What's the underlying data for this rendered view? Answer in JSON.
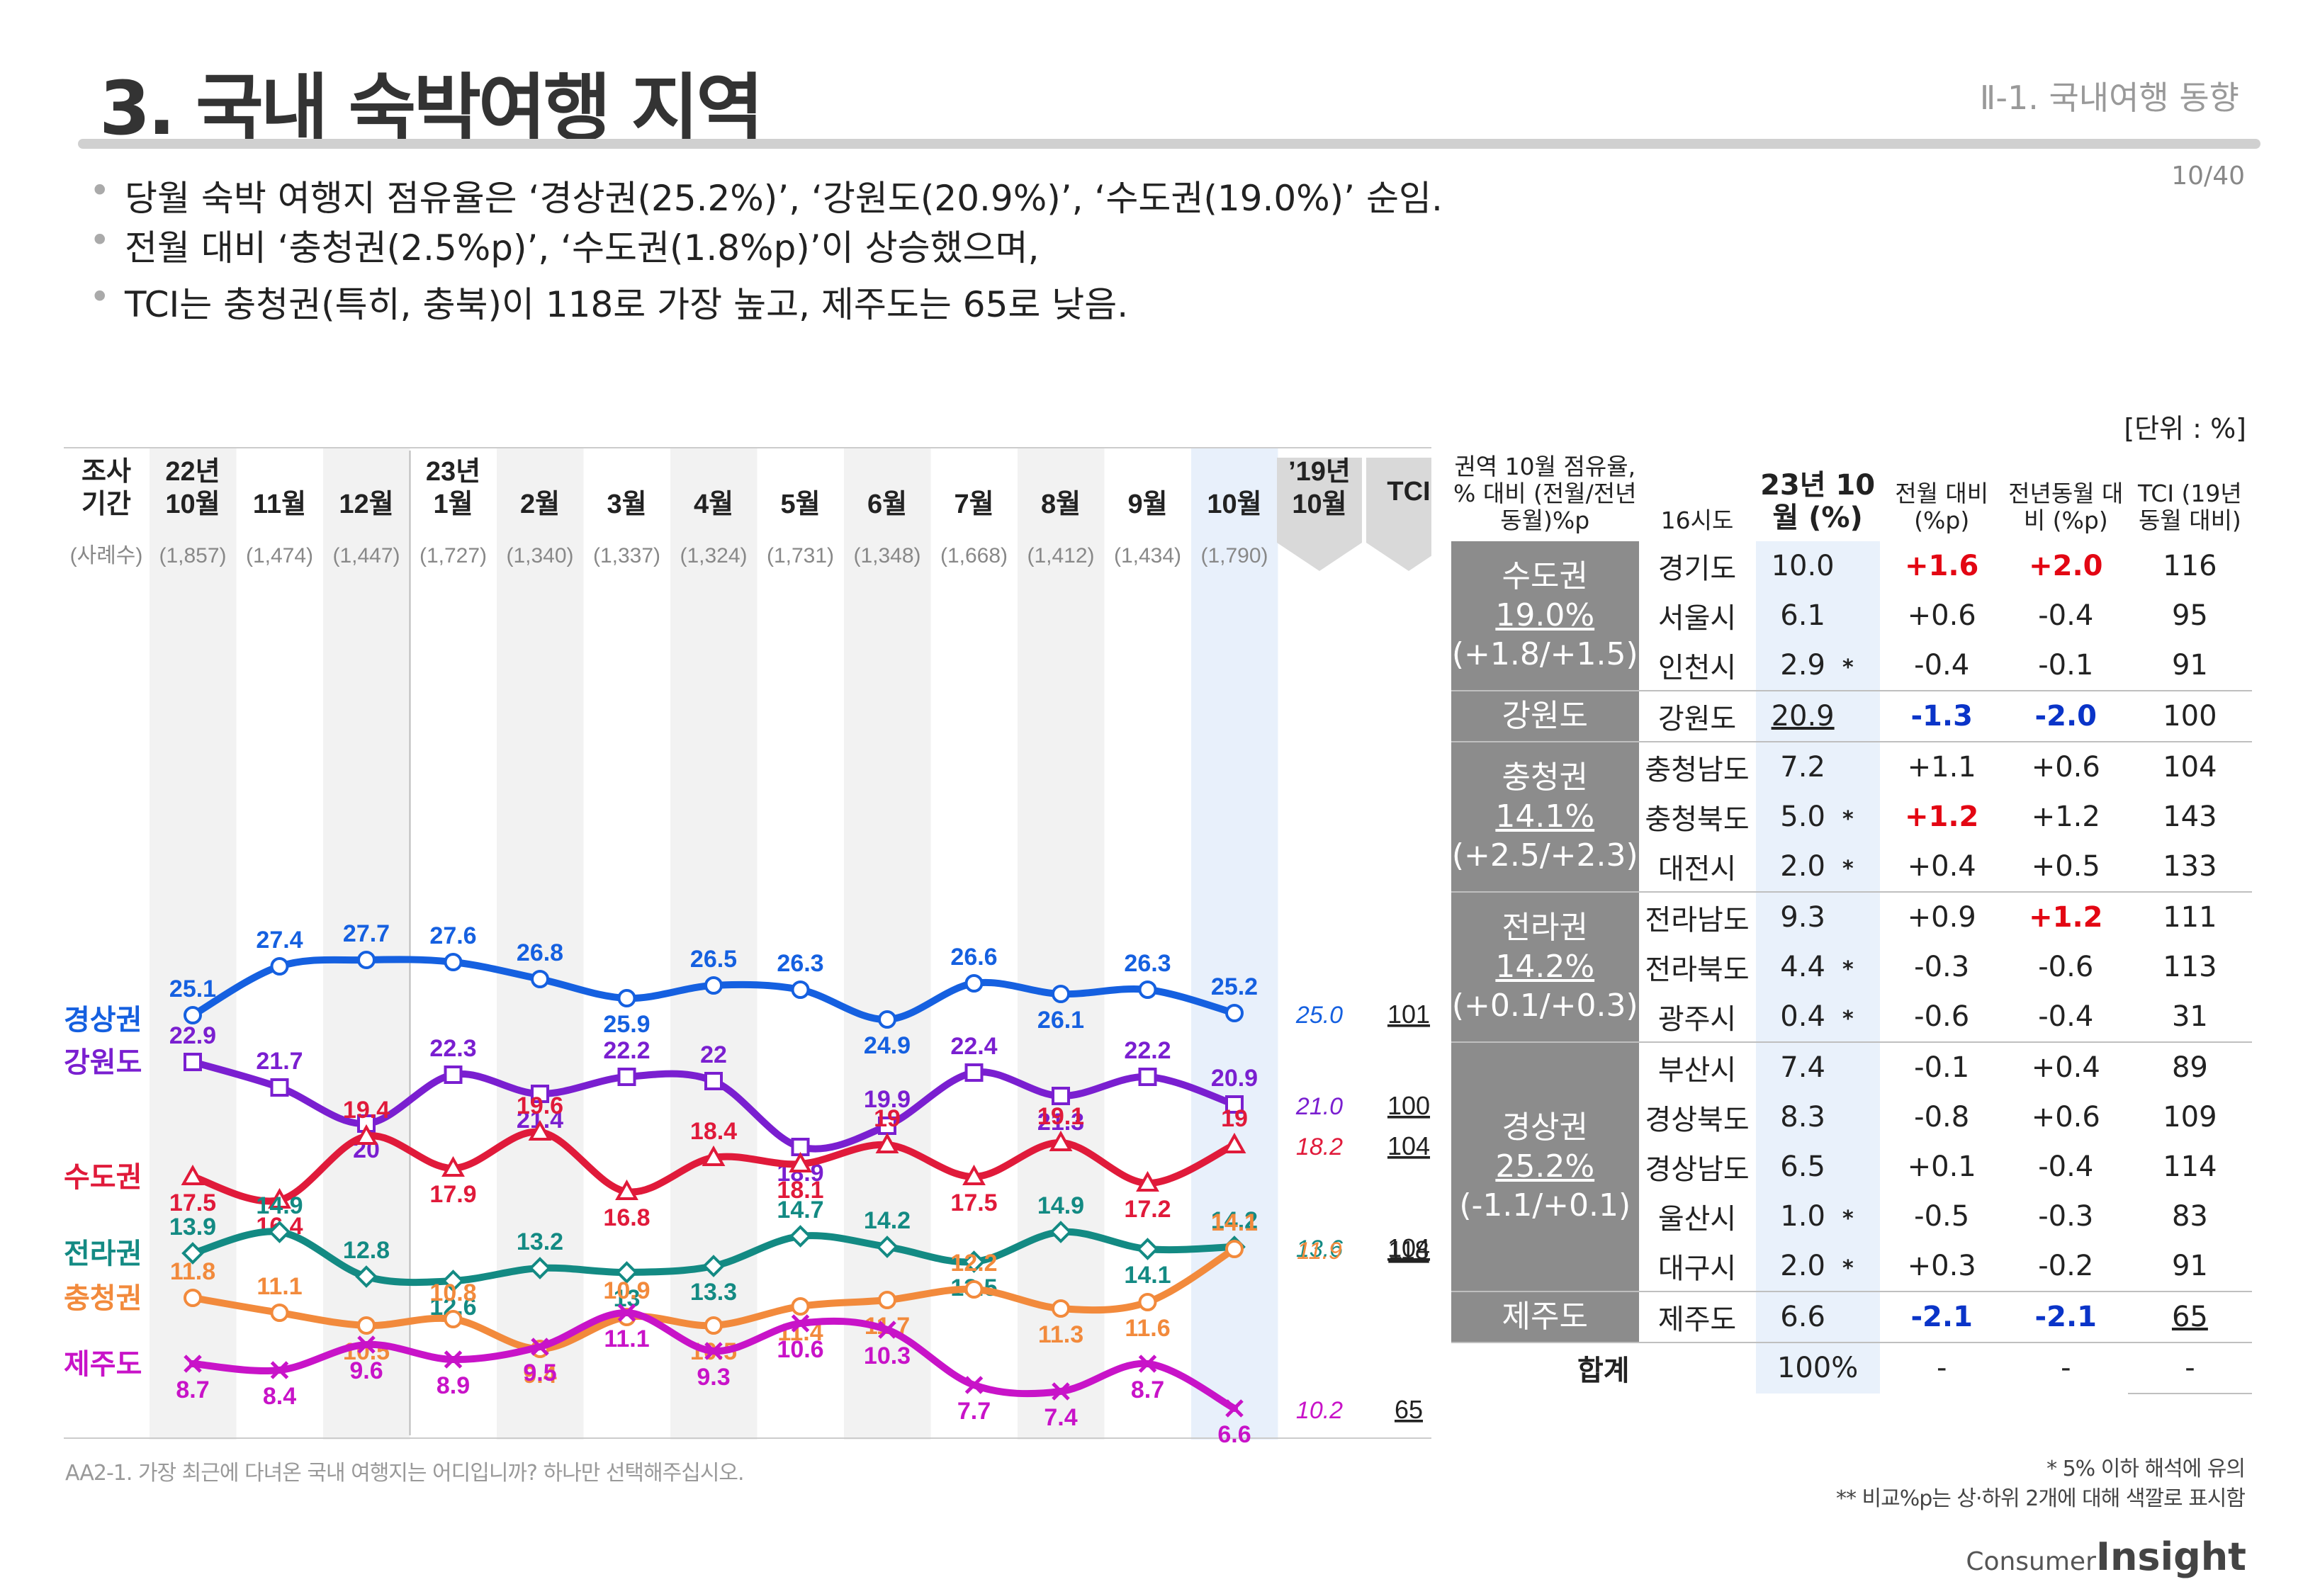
{
  "header": {
    "title": "3. 국내 숙박여행 지역",
    "section": "Ⅱ-1. 국내여행 동향",
    "page": "10/40",
    "unit": "[단위 : %]"
  },
  "bullets": [
    "당월 숙박 여행지 점유율은 ‘경상권(25.2%)’, ‘강원도(20.9%)’, ‘수도권(19.0%)’ 순임.",
    "전월 대비 ‘충청권(2.5%p)’, ‘수도권(1.8%p)’이 상승했으며,",
    "TCI는 충청권(특히, 충북)이 118로 가장 높고, 제주도는 65로 낮음."
  ],
  "chart_data": {
    "type": "line",
    "header_label": [
      "조사",
      "기간"
    ],
    "sample_label": "(사례수)",
    "categories": [
      [
        "22년",
        "10월"
      ],
      [
        "11월"
      ],
      [
        "12월"
      ],
      [
        "23년",
        "1월"
      ],
      [
        "2월"
      ],
      [
        "3월"
      ],
      [
        "4월"
      ],
      [
        "5월"
      ],
      [
        "6월"
      ],
      [
        "7월"
      ],
      [
        "8월"
      ],
      [
        "9월"
      ],
      [
        "10월"
      ]
    ],
    "samples": [
      "(1,857)",
      "(1,474)",
      "(1,447)",
      "(1,727)",
      "(1,340)",
      "(1,337)",
      "(1,324)",
      "(1,731)",
      "(1,348)",
      "(1,668)",
      "(1,412)",
      "(1,434)",
      "(1,790)"
    ],
    "prev_year_label": [
      "’19년",
      "10월"
    ],
    "tci_label": "TCI",
    "series": [
      {
        "name": "경상권",
        "color": "#1560e0",
        "marker": "circle",
        "values": [
          25.1,
          27.4,
          27.7,
          27.6,
          26.8,
          25.9,
          26.5,
          26.3,
          24.9,
          26.6,
          26.1,
          26.3,
          25.2
        ],
        "prev_year": "25.0",
        "tci": "101"
      },
      {
        "name": "강원도",
        "color": "#7a1fd0",
        "marker": "square",
        "values": [
          22.9,
          21.7,
          20.0,
          22.3,
          21.4,
          22.2,
          22.0,
          18.9,
          19.9,
          22.4,
          21.3,
          22.2,
          20.9
        ],
        "prev_year": "21.0",
        "tci": "100"
      },
      {
        "name": "수도권",
        "color": "#e01a3a",
        "marker": "triangle",
        "values": [
          17.5,
          16.4,
          19.4,
          17.9,
          19.6,
          16.8,
          18.4,
          18.1,
          19.0,
          17.5,
          19.1,
          17.2,
          19.0
        ],
        "prev_year": "18.2",
        "tci": "104"
      },
      {
        "name": "전라권",
        "color": "#138a83",
        "marker": "diamond",
        "values": [
          13.9,
          14.9,
          12.8,
          12.6,
          13.2,
          13.0,
          13.3,
          14.7,
          14.2,
          13.5,
          14.9,
          14.1,
          14.2
        ],
        "prev_year": "13.6",
        "tci": "104"
      },
      {
        "name": "충청권",
        "color": "#f28a3c",
        "marker": "circle",
        "values": [
          11.8,
          11.1,
          10.5,
          10.8,
          9.4,
          10.9,
          10.5,
          11.4,
          11.7,
          12.2,
          11.3,
          11.6,
          14.1
        ],
        "prev_year": "11.9",
        "tci": "118"
      },
      {
        "name": "제주도",
        "color": "#c813c8",
        "marker": "x",
        "values": [
          8.7,
          8.4,
          9.6,
          8.9,
          9.5,
          11.1,
          9.3,
          10.6,
          10.3,
          7.7,
          7.4,
          8.7,
          6.6
        ],
        "prev_year": "10.2",
        "tci": "65"
      }
    ]
  },
  "table": {
    "headers": [
      "권역 10월 점유율, % 대비 (전월/전년동월)%p",
      "16시도",
      "23년 10월 (%)",
      "전월 대비 (%p)",
      "전년동월 대비 (%p)",
      "TCI (19년 동월 대비)"
    ],
    "rows": [
      {
        "region": "수도권",
        "share": "19.0%",
        "delta": "(+1.8/+1.5)",
        "span": 3,
        "city": "경기도",
        "pct": "10.0",
        "star": "",
        "mom": "+1.6",
        "yoy": "+2.0",
        "tci": "116",
        "mom_c": "red",
        "yoy_c": "red"
      },
      {
        "city": "서울시",
        "pct": "6.1",
        "star": "",
        "mom": "+0.6",
        "yoy": "-0.4",
        "tci": "95"
      },
      {
        "city": "인천시",
        "pct": "2.9",
        "star": "*",
        "mom": "-0.4",
        "yoy": "-0.1",
        "tci": "91"
      },
      {
        "region": "강원도",
        "span": 1,
        "city": "강원도",
        "pct": "20.9",
        "pct_ul": true,
        "star": "",
        "mom": "-1.3",
        "yoy": "-2.0",
        "tci": "100",
        "mom_c": "blue",
        "yoy_c": "blue"
      },
      {
        "region": "충청권",
        "share": "14.1%",
        "delta": "(+2.5/+2.3)",
        "span": 3,
        "city": "충청남도",
        "pct": "7.2",
        "star": "",
        "mom": "+1.1",
        "yoy": "+0.6",
        "tci": "104"
      },
      {
        "city": "충청북도",
        "pct": "5.0",
        "star": "*",
        "mom": "+1.2",
        "yoy": "+1.2",
        "tci": "143",
        "mom_c": "red"
      },
      {
        "city": "대전시",
        "pct": "2.0",
        "star": "*",
        "mom": "+0.4",
        "yoy": "+0.5",
        "tci": "133"
      },
      {
        "region": "전라권",
        "share": "14.2%",
        "delta": "(+0.1/+0.3)",
        "span": 3,
        "city": "전라남도",
        "pct": "9.3",
        "star": "",
        "mom": "+0.9",
        "yoy": "+1.2",
        "tci": "111",
        "yoy_c": "red"
      },
      {
        "city": "전라북도",
        "pct": "4.4",
        "star": "*",
        "mom": "-0.3",
        "yoy": "-0.6",
        "tci": "113"
      },
      {
        "city": "광주시",
        "pct": "0.4",
        "star": "*",
        "mom": "-0.6",
        "yoy": "-0.4",
        "tci": "31"
      },
      {
        "region": "경상권",
        "share": "25.2%",
        "delta": "(-1.1/+0.1)",
        "span": 5,
        "city": "부산시",
        "pct": "7.4",
        "star": "",
        "mom": "-0.1",
        "yoy": "+0.4",
        "tci": "89"
      },
      {
        "city": "경상북도",
        "pct": "8.3",
        "star": "",
        "mom": "-0.8",
        "yoy": "+0.6",
        "tci": "109"
      },
      {
        "city": "경상남도",
        "pct": "6.5",
        "star": "",
        "mom": "+0.1",
        "yoy": "-0.4",
        "tci": "114"
      },
      {
        "city": "울산시",
        "pct": "1.0",
        "star": "*",
        "mom": "-0.5",
        "yoy": "-0.3",
        "tci": "83"
      },
      {
        "city": "대구시",
        "pct": "2.0",
        "star": "*",
        "mom": "+0.3",
        "yoy": "-0.2",
        "tci": "91"
      },
      {
        "region": "제주도",
        "span": 1,
        "city": "제주도",
        "pct": "6.6",
        "star": "",
        "mom": "-2.1",
        "yoy": "-2.1",
        "tci": "65",
        "tci_ul": true,
        "mom_c": "blue",
        "yoy_c": "blue"
      }
    ],
    "total": {
      "label": "합계",
      "pct": "100%",
      "mom": "-",
      "yoy": "-",
      "tci": "-"
    }
  },
  "footer": {
    "question": "AA2-1. 가장 최근에 다녀온 국내 여행지는 어디입니까? 하나만 선택해주십시오.",
    "note1": "* 5% 이하 해석에 유의",
    "note2": "** 비교%p는 상·하위 2개에 대해 색깔로 표시함",
    "logo_small": "Consumer",
    "logo_big": "Insight"
  }
}
